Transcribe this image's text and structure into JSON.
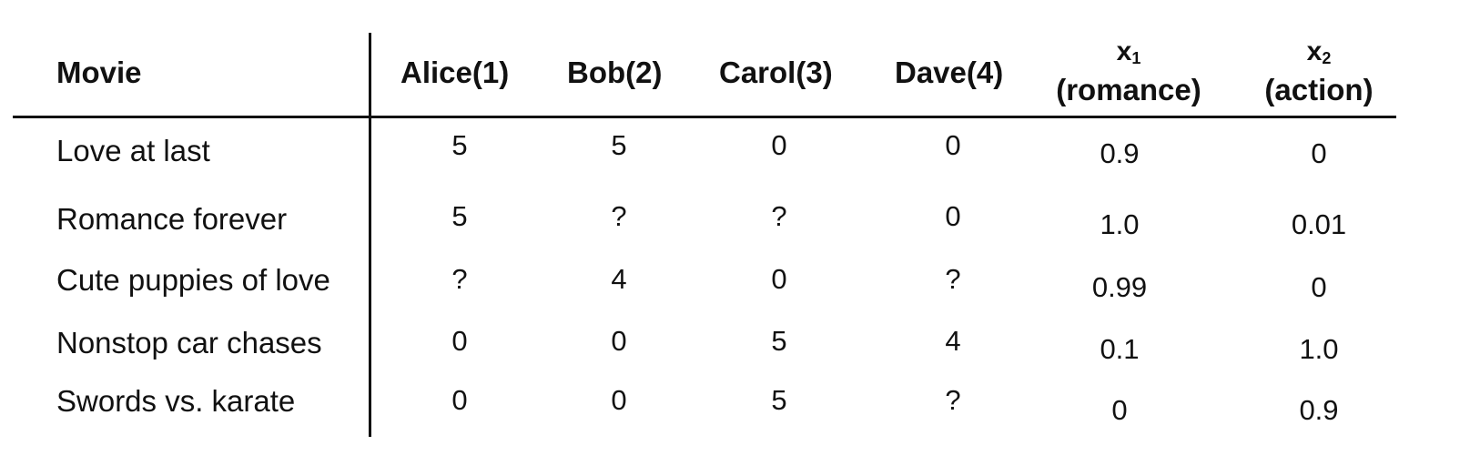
{
  "headers": {
    "movie": "Movie",
    "alice": "Alice(1)",
    "bob": "Bob(2)",
    "carol": "Carol(3)",
    "dave": "Dave(4)",
    "x1_symbol": "x",
    "x1_sub": "1",
    "x1_label": "(romance)",
    "x2_symbol": "x",
    "x2_sub": "2",
    "x2_label": "(action)"
  },
  "rows": [
    {
      "movie": "Love at last",
      "alice": "5",
      "bob": "5",
      "carol": "0",
      "dave": "0",
      "x1": "0.9",
      "x2": "0"
    },
    {
      "movie": "Romance forever",
      "alice": "5",
      "bob": "?",
      "carol": "?",
      "dave": "0",
      "x1": "1.0",
      "x2": "0.01"
    },
    {
      "movie": "Cute puppies of love",
      "alice": "?",
      "bob": "4",
      "carol": "0",
      "dave": "?",
      "x1": "0.99",
      "x2": "0"
    },
    {
      "movie": "Nonstop car chases",
      "alice": "0",
      "bob": "0",
      "carol": "5",
      "dave": "4",
      "x1": "0.1",
      "x2": "1.0"
    },
    {
      "movie": "Swords vs. karate",
      "alice": "0",
      "bob": "0",
      "carol": "5",
      "dave": "?",
      "x1": "0",
      "x2": "0.9"
    }
  ]
}
